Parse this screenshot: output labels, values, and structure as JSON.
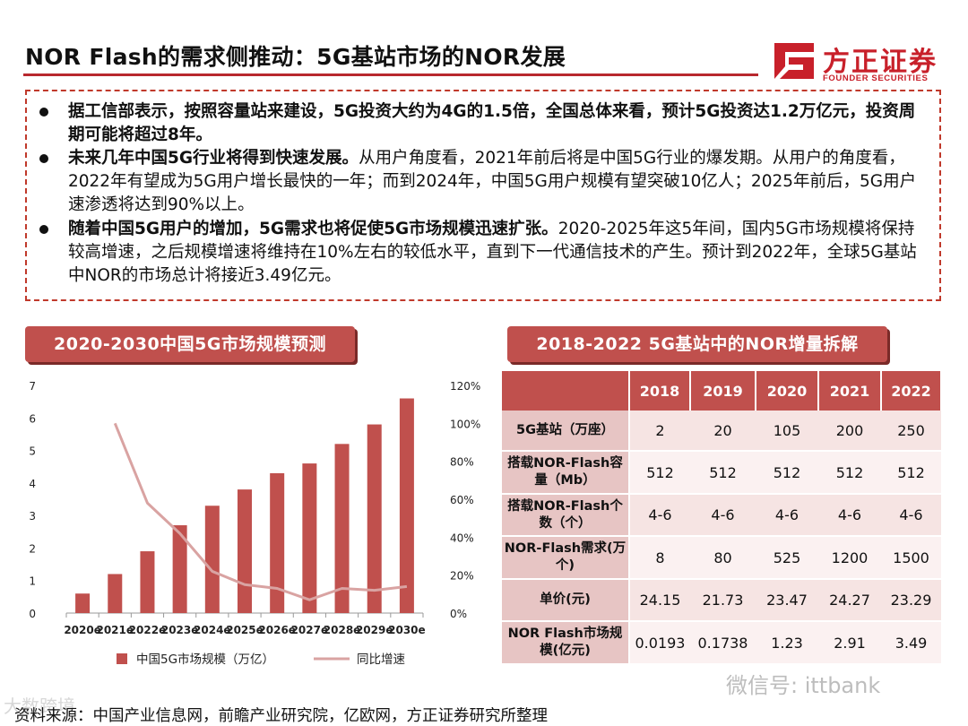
{
  "header": {
    "title": "NOR Flash的需求侧推动：5G基站市场的NOR发展",
    "logo_cn": "方正证券",
    "logo_en": "FOUNDER SECURITIES",
    "brand_color": "#c8202a"
  },
  "summary": {
    "bullets": [
      {
        "bold": "据工信部表示，按照容量站来建设，5G投资大约为4G的1.5倍，全国总体来看，预计5G投资达1.2万亿元，投资周期可能将超过8年。",
        "normal": ""
      },
      {
        "bold": "未来几年中国5G行业将得到快速发展。",
        "normal": "从用户角度看，2021年前后将是中国5G行业的爆发期。从用户的角度看，2022年有望成为5G用户增长最快的一年；而到2024年，中国5G用户规模有望突破10亿人；2025年前后，5G用户速渗透将达到90%以上。"
      },
      {
        "bold": "随着中国5G用户的增加，5G需求也将促使5G市场规模迅速扩张。",
        "normal": "2020-2025年这5年间，国内5G市场规模将保持较高增速，之后规模增速将维持在10%左右的较低水平，直到下一代通信技术的产生。预计到2022年，全球5G基站中NOR的市场总计将接近3.49亿元。"
      }
    ]
  },
  "left_panel": {
    "title": "2020-2030中国5G市场规模预测"
  },
  "right_panel": {
    "title": "2018-2022 5G基站中的NOR增量拆解"
  },
  "chart_data": {
    "type": "bar",
    "categories": [
      "2020e",
      "2021e",
      "2022e",
      "2023e",
      "2024e",
      "2025e",
      "2026e",
      "2027e",
      "2028e",
      "2029e",
      "2030e"
    ],
    "series": [
      {
        "name": "中国5G市场规模（万亿）",
        "type": "bar",
        "axis": "left",
        "color": "#c0504d",
        "values": [
          0.6,
          1.2,
          1.9,
          2.7,
          3.3,
          3.8,
          4.3,
          4.6,
          5.2,
          5.8,
          6.6
        ]
      },
      {
        "name": "同比增速",
        "type": "line",
        "axis": "right",
        "color": "#d9a3a2",
        "values": [
          null,
          100,
          58,
          42,
          22,
          15,
          13,
          7,
          13,
          12,
          14
        ]
      }
    ],
    "y_left": {
      "min": 0,
      "max": 7,
      "ticks": [
        "0",
        "1",
        "2",
        "3",
        "4",
        "5",
        "6",
        "7"
      ]
    },
    "y_right": {
      "min": 0,
      "max": 120,
      "ticks": [
        "0%",
        "20%",
        "40%",
        "60%",
        "80%",
        "100%",
        "120%"
      ]
    },
    "legend": [
      "中国5G市场规模（万亿）",
      "同比增速"
    ],
    "legend_position": "bottom"
  },
  "table": {
    "columns": [
      "",
      "2018",
      "2019",
      "2020",
      "2021",
      "2022"
    ],
    "rows": [
      {
        "label": "5G基站（万座）",
        "values": [
          "2",
          "20",
          "105",
          "200",
          "250"
        ]
      },
      {
        "label": "搭载NOR-Flash容量（Mb）",
        "values": [
          "512",
          "512",
          "512",
          "512",
          "512"
        ]
      },
      {
        "label": "搭载NOR-Flash个数（个）",
        "values": [
          "4-6",
          "4-6",
          "4-6",
          "4-6",
          "4-6"
        ]
      },
      {
        "label": "NOR-Flash需求(万个)",
        "values": [
          "8",
          "80",
          "525",
          "1200",
          "1500"
        ]
      },
      {
        "label": "单价(元)",
        "values": [
          "24.15",
          "21.73",
          "23.47",
          "24.27",
          "23.29"
        ]
      },
      {
        "label": "NOR Flash市场规模(亿元)",
        "values": [
          "0.0193",
          "0.1738",
          "1.23",
          "2.91",
          "3.49"
        ]
      }
    ]
  },
  "footer": {
    "source": "资料来源：中国产业信息网，前瞻产业研究院，亿欧网，方正证券研究所整理",
    "watermark": "微信号: ittbank",
    "watermark2": "大数跨境"
  }
}
